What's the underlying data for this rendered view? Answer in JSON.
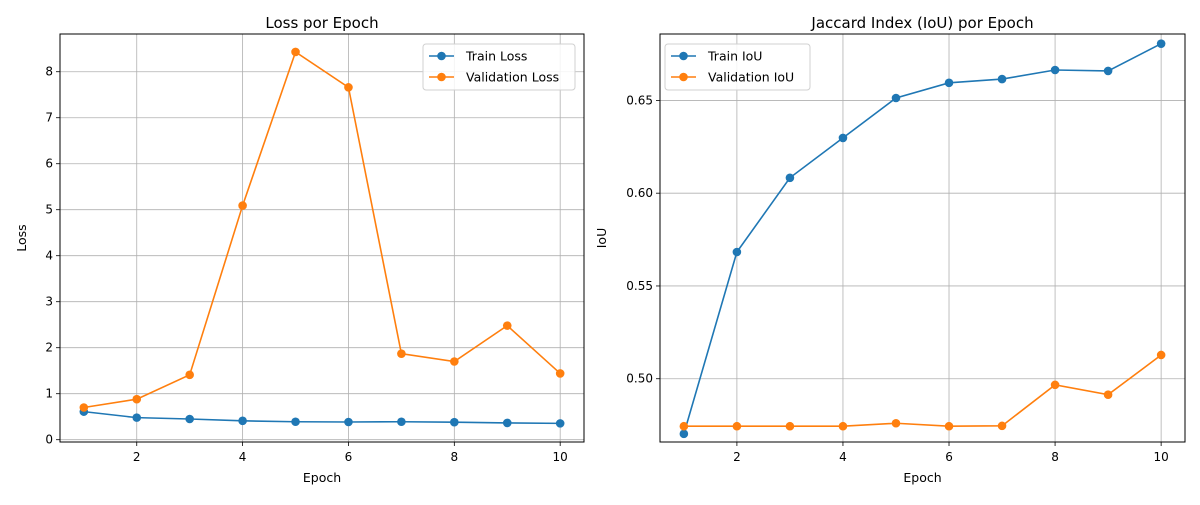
{
  "chart_data": [
    {
      "type": "line",
      "title": "Loss por Epoch",
      "xlabel": "Epoch",
      "ylabel": "Loss",
      "x": [
        1,
        2,
        3,
        4,
        5,
        6,
        7,
        8,
        9,
        10
      ],
      "xlim": [
        0.55,
        10.45
      ],
      "ylim": [
        -0.05,
        8.82
      ],
      "xticks": [
        2,
        4,
        6,
        8,
        10
      ],
      "yticks": [
        0,
        1,
        2,
        3,
        4,
        5,
        6,
        7,
        8
      ],
      "grid": true,
      "legend": "top-right",
      "series": [
        {
          "name": "Train Loss",
          "color": "#1f77b4",
          "values": [
            0.61,
            0.48,
            0.45,
            0.41,
            0.39,
            0.385,
            0.39,
            0.38,
            0.365,
            0.355
          ]
        },
        {
          "name": "Validation Loss",
          "color": "#ff7f0e",
          "values": [
            0.7,
            0.88,
            1.41,
            5.09,
            8.43,
            7.66,
            1.87,
            1.7,
            2.48,
            1.44
          ]
        }
      ]
    },
    {
      "type": "line",
      "title": "Jaccard Index (IoU) por Epoch",
      "xlabel": "Epoch",
      "ylabel": "IoU",
      "x": [
        1,
        2,
        3,
        4,
        5,
        6,
        7,
        8,
        9,
        10
      ],
      "xlim": [
        0.55,
        10.45
      ],
      "ylim": [
        0.4659,
        0.6858
      ],
      "xticks": [
        2,
        4,
        6,
        8,
        10
      ],
      "yticks": [
        0.5,
        0.55,
        0.6,
        0.65
      ],
      "ytick_labels": [
        "0.50",
        "0.55",
        "0.60",
        "0.65"
      ],
      "grid": true,
      "legend": "top-left",
      "series": [
        {
          "name": "Train IoU",
          "color": "#1f77b4",
          "values": [
            0.4703,
            0.5683,
            0.6083,
            0.6298,
            0.6513,
            0.6595,
            0.6615,
            0.6664,
            0.6659,
            0.6806
          ]
        },
        {
          "name": "Validation IoU",
          "color": "#ff7f0e",
          "values": [
            0.4744,
            0.4744,
            0.4744,
            0.4744,
            0.476,
            0.4744,
            0.4746,
            0.4967,
            0.4914,
            0.5128
          ]
        }
      ]
    }
  ]
}
